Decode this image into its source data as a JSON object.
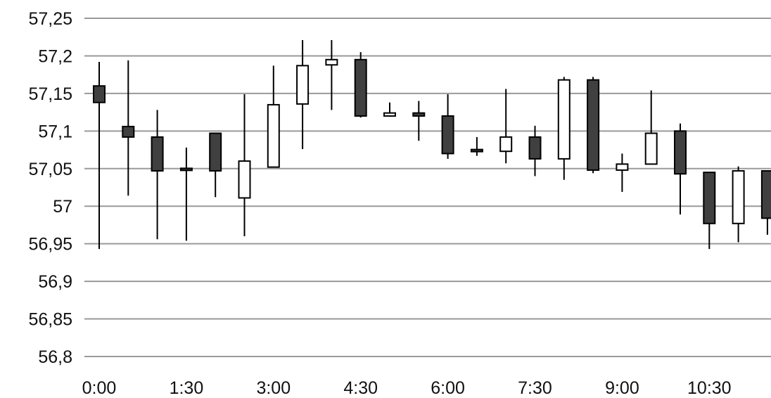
{
  "chart_data": {
    "type": "candlestick",
    "title": "",
    "xlabel": "",
    "ylabel": "",
    "ylim": [
      56.8,
      57.25
    ],
    "y_ticks": [
      "56,8",
      "56,85",
      "56,9",
      "56,95",
      "57",
      "57,05",
      "57,1",
      "57,15",
      "57,2",
      "57,25"
    ],
    "y_tick_values": [
      56.8,
      56.85,
      56.9,
      56.95,
      57.0,
      57.05,
      57.1,
      57.15,
      57.2,
      57.25
    ],
    "x_tick_labels": [
      "0:00",
      "1:30",
      "3:00",
      "4:30",
      "6:00",
      "7:30",
      "9:00",
      "10:30"
    ],
    "x_tick_every": 3,
    "grid": true,
    "legend": "none",
    "colors": {
      "up": "#ffffff",
      "down": "#404040",
      "outline": "#000000",
      "grid": "#9a9a9a"
    },
    "candles": [
      {
        "time": "0:00",
        "open": 57.16,
        "high": 57.192,
        "low": 56.943,
        "close": 57.138
      },
      {
        "time": "0:30",
        "open": 57.106,
        "high": 57.194,
        "low": 57.014,
        "close": 57.092
      },
      {
        "time": "1:00",
        "open": 57.092,
        "high": 57.128,
        "low": 56.956,
        "close": 57.047
      },
      {
        "time": "1:30",
        "open": 57.049,
        "high": 57.078,
        "low": 56.954,
        "close": 57.047
      },
      {
        "time": "2:00",
        "open": 57.097,
        "high": 57.097,
        "low": 57.012,
        "close": 57.047
      },
      {
        "time": "2:30",
        "open": 57.011,
        "high": 57.149,
        "low": 56.96,
        "close": 57.06
      },
      {
        "time": "3:00",
        "open": 57.052,
        "high": 57.187,
        "low": 57.052,
        "close": 57.135
      },
      {
        "time": "3:30",
        "open": 57.136,
        "high": 57.221,
        "low": 57.076,
        "close": 57.187
      },
      {
        "time": "4:00",
        "open": 57.188,
        "high": 57.221,
        "low": 57.128,
        "close": 57.195
      },
      {
        "time": "4:30",
        "open": 57.195,
        "high": 57.205,
        "low": 57.118,
        "close": 57.12
      },
      {
        "time": "5:00",
        "open": 57.12,
        "high": 57.138,
        "low": 57.119,
        "close": 57.124
      },
      {
        "time": "5:30",
        "open": 57.124,
        "high": 57.14,
        "low": 57.087,
        "close": 57.12
      },
      {
        "time": "6:00",
        "open": 57.12,
        "high": 57.149,
        "low": 57.063,
        "close": 57.07
      },
      {
        "time": "6:30",
        "open": 57.074,
        "high": 57.092,
        "low": 57.067,
        "close": 57.072
      },
      {
        "time": "7:00",
        "open": 57.073,
        "high": 57.156,
        "low": 57.057,
        "close": 57.092
      },
      {
        "time": "7:30",
        "open": 57.092,
        "high": 57.107,
        "low": 57.04,
        "close": 57.063
      },
      {
        "time": "8:00",
        "open": 57.063,
        "high": 57.172,
        "low": 57.035,
        "close": 57.168
      },
      {
        "time": "8:30",
        "open": 57.168,
        "high": 57.172,
        "low": 57.044,
        "close": 57.048
      },
      {
        "time": "9:00",
        "open": 57.048,
        "high": 57.07,
        "low": 57.019,
        "close": 57.056
      },
      {
        "time": "9:30",
        "open": 57.056,
        "high": 57.154,
        "low": 57.056,
        "close": 57.097
      },
      {
        "time": "10:00",
        "open": 57.1,
        "high": 57.11,
        "low": 56.989,
        "close": 57.043
      },
      {
        "time": "10:30",
        "open": 57.045,
        "high": 57.045,
        "low": 56.943,
        "close": 56.977
      },
      {
        "time": "11:00",
        "open": 56.977,
        "high": 57.053,
        "low": 56.952,
        "close": 57.047
      },
      {
        "time": "11:30",
        "open": 57.047,
        "high": 57.047,
        "low": 56.962,
        "close": 56.984
      }
    ]
  }
}
